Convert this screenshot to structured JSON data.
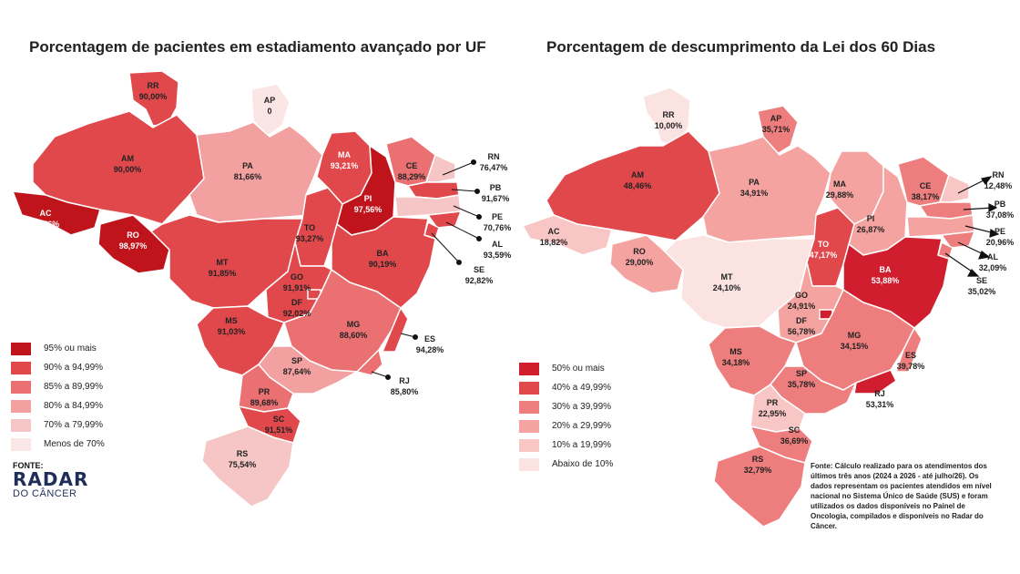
{
  "left": {
    "title": "Porcentagem de pacientes em estadiamento avançado por UF",
    "legend": [
      {
        "label": "95% ou mais",
        "color": "#c0141c"
      },
      {
        "label": "90% a 94,99%",
        "color": "#e0484c"
      },
      {
        "label": "85% a 89,99%",
        "color": "#ea7072"
      },
      {
        "label": "80% a 84,99%",
        "color": "#f2a0a0"
      },
      {
        "label": "70% a 79,99%",
        "color": "#f6c5c5"
      },
      {
        "label": "Menos de 70%",
        "color": "#fbe6e6"
      }
    ],
    "states": {
      "RR": {
        "name": "RR",
        "value": "90,00%"
      },
      "AP": {
        "name": "AP",
        "value": "0"
      },
      "AM": {
        "name": "AM",
        "value": "90,00%"
      },
      "PA": {
        "name": "PA",
        "value": "81,66%"
      },
      "MA": {
        "name": "MA",
        "value": "93,21%"
      },
      "CE": {
        "name": "CE",
        "value": "88,29%"
      },
      "RN": {
        "name": "RN",
        "value": "76,47%"
      },
      "PB": {
        "name": "PB",
        "value": "91,67%"
      },
      "PE": {
        "name": "PE",
        "value": "70,76%"
      },
      "AL": {
        "name": "AL",
        "value": "93,59%"
      },
      "SE": {
        "name": "SE",
        "value": "92,82%"
      },
      "PI": {
        "name": "PI",
        "value": "97,56%"
      },
      "AC": {
        "name": "AC",
        "value": "97,56%"
      },
      "RO": {
        "name": "RO",
        "value": "98,97%"
      },
      "TO": {
        "name": "TO",
        "value": "93,27%"
      },
      "BA": {
        "name": "BA",
        "value": "90,19%"
      },
      "MT": {
        "name": "MT",
        "value": "91,85%"
      },
      "GO": {
        "name": "GO",
        "value": "91,91%"
      },
      "DF": {
        "name": "DF",
        "value": "92,02%"
      },
      "MS": {
        "name": "MS",
        "value": "91,03%"
      },
      "MG": {
        "name": "MG",
        "value": "88,60%"
      },
      "ES": {
        "name": "ES",
        "value": "94,28%"
      },
      "SP": {
        "name": "SP",
        "value": "87,64%"
      },
      "RJ": {
        "name": "RJ",
        "value": "85,80%"
      },
      "PR": {
        "name": "PR",
        "value": "89,68%"
      },
      "SC": {
        "name": "SC",
        "value": "91,51%"
      },
      "RS": {
        "name": "RS",
        "value": "75,54%"
      }
    },
    "brand": {
      "fonte": "FONTE:",
      "radar": "RADAR",
      "cancer": "DO CÂNCER"
    }
  },
  "right": {
    "title": "Porcentagem de descumprimento da Lei dos 60 Dias",
    "legend": [
      {
        "label": "50% ou mais",
        "color": "#d01e2e"
      },
      {
        "label": "40% a 49,99%",
        "color": "#e0484c"
      },
      {
        "label": "30% a 39,99%",
        "color": "#ee7d7d"
      },
      {
        "label": "20% a 29,99%",
        "color": "#f4a3a0"
      },
      {
        "label": "10% a 19,99%",
        "color": "#f8c6c4"
      },
      {
        "label": "Abaixo de 10%",
        "color": "#fbe3e2"
      }
    ],
    "states": {
      "RR": {
        "name": "RR",
        "value": "10,00%"
      },
      "AP": {
        "name": "AP",
        "value": "35,71%"
      },
      "AM": {
        "name": "AM",
        "value": "48,46%"
      },
      "PA": {
        "name": "PA",
        "value": "34,91%"
      },
      "MA": {
        "name": "MA",
        "value": "29,88%"
      },
      "CE": {
        "name": "CE",
        "value": "38,17%"
      },
      "RN": {
        "name": "RN",
        "value": "12,48%"
      },
      "PB": {
        "name": "PB",
        "value": "37,08%"
      },
      "PE": {
        "name": "PE",
        "value": "20,96%"
      },
      "AL": {
        "name": "AL",
        "value": "32,09%"
      },
      "SE": {
        "name": "SE",
        "value": "35,02%"
      },
      "PI": {
        "name": "PI",
        "value": "26,87%"
      },
      "AC": {
        "name": "AC",
        "value": "18,82%"
      },
      "RO": {
        "name": "RO",
        "value": "29,00%"
      },
      "TO": {
        "name": "TO",
        "value": "47,17%"
      },
      "BA": {
        "name": "BA",
        "value": "53,88%"
      },
      "MT": {
        "name": "MT",
        "value": "24,10%"
      },
      "GO": {
        "name": "GO",
        "value": "24,91%"
      },
      "DF": {
        "name": "DF",
        "value": "56,78%"
      },
      "MS": {
        "name": "MS",
        "value": "34,18%"
      },
      "MG": {
        "name": "MG",
        "value": "34,15%"
      },
      "ES": {
        "name": "ES",
        "value": "39,78%"
      },
      "SP": {
        "name": "SP",
        "value": "35,78%"
      },
      "RJ": {
        "name": "RJ",
        "value": "53,31%"
      },
      "PR": {
        "name": "PR",
        "value": "22,95%"
      },
      "SC": {
        "name": "SC",
        "value": "36,69%"
      },
      "RS": {
        "name": "RS",
        "value": "32,79%"
      }
    },
    "source": "Fonte: Cálculo realizado para os atendimentos dos últimos três anos (2024 a 2026 - até julho/26). Os dados representam os pacientes atendidos em nível nacional no Sistema Único de Saúde (SUS) e foram utilizados os dados disponíveis no Painel de Oncologia, compilados e disponíveis no Radar do Câncer."
  }
}
